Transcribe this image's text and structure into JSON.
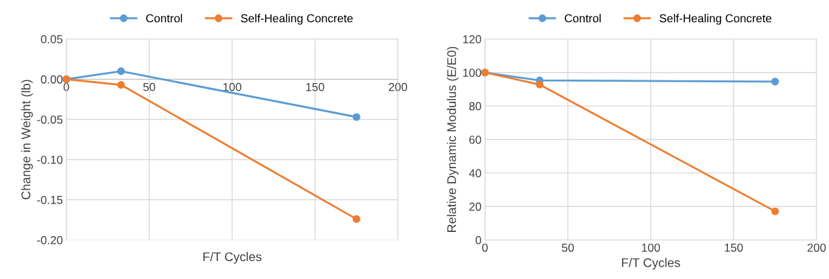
{
  "chart_data": [
    {
      "type": "line",
      "xlabel": "F/T Cycles",
      "ylabel": "Change in Weight (lb)",
      "x": [
        0,
        33,
        175
      ],
      "series": [
        {
          "name": "Control",
          "color": "#5b9bd5",
          "values": [
            0.0,
            0.01,
            -0.047
          ]
        },
        {
          "name": "Self-Healing Concrete",
          "color": "#ed7d31",
          "values": [
            0.0,
            -0.007,
            -0.174
          ]
        }
      ],
      "xlim": [
        0,
        200
      ],
      "xticks": [
        0,
        50,
        100,
        150,
        200
      ],
      "ylim": [
        -0.2,
        0.05
      ],
      "yticks": [
        {
          "value": -0.2,
          "label": "-0.20"
        },
        {
          "value": -0.15,
          "label": "-0.15"
        },
        {
          "value": -0.1,
          "label": "-0.10"
        },
        {
          "value": -0.05,
          "label": "-0.05"
        },
        {
          "value": 0,
          "label": "0.00"
        },
        {
          "value": 0.05,
          "label": "0.05"
        }
      ],
      "grid": true,
      "legend": "top",
      "marker": "circle",
      "line_style": "solid"
    },
    {
      "type": "line",
      "xlabel": "F/T Cycles",
      "ylabel": "Relative Dynamic Modulus (E/E0)",
      "x": [
        0,
        33,
        175
      ],
      "series": [
        {
          "name": "Control",
          "color": "#5b9bd5",
          "values": [
            100,
            95.3,
            94.6
          ]
        },
        {
          "name": "Self-Healing Concrete",
          "color": "#ed7d31",
          "values": [
            100,
            92.8,
            17.1
          ]
        }
      ],
      "xlim": [
        0,
        200
      ],
      "xticks": [
        0,
        50,
        100,
        150,
        200
      ],
      "ylim": [
        0,
        120
      ],
      "yticks": [
        0,
        20,
        40,
        60,
        80,
        100,
        120
      ],
      "grid": true,
      "legend": "top",
      "marker": "circle",
      "line_style": "solid"
    }
  ]
}
